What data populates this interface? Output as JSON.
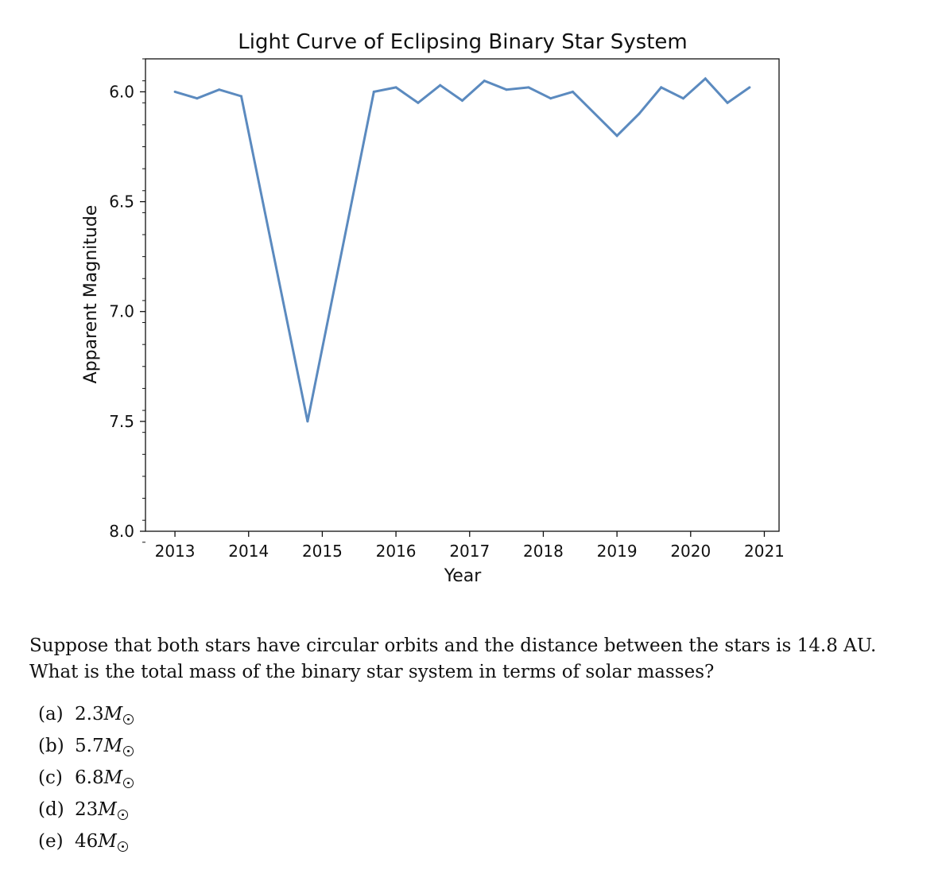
{
  "chart_data": {
    "type": "line",
    "title": "Light Curve of Eclipsing Binary Star System",
    "xlabel": "Year",
    "ylabel": "Apparent Magnitude",
    "xlim": [
      2012.6,
      2021.2
    ],
    "ylim": [
      8.0,
      5.85
    ],
    "y_inverted": true,
    "xticks": [
      2013,
      2014,
      2015,
      2016,
      2017,
      2018,
      2019,
      2020,
      2021
    ],
    "xtick_labels": [
      "2013",
      "2014",
      "2015",
      "2016",
      "2017",
      "2018",
      "2019",
      "2020",
      "2021"
    ],
    "yticks": [
      6.0,
      6.5,
      7.0,
      7.5,
      8.0
    ],
    "ytick_labels": [
      "6.0",
      "6.5",
      "7.0",
      "7.5",
      "8.0"
    ],
    "grid": false,
    "line_color": "#5b8abf",
    "series": [
      {
        "x": [
          2013.0,
          2013.3,
          2013.6,
          2013.9,
          2014.8,
          2015.7,
          2016.0,
          2016.3,
          2016.6,
          2016.9,
          2017.2,
          2017.5,
          2017.8,
          2018.1,
          2018.4,
          2019.0,
          2019.3,
          2019.6,
          2019.9,
          2020.2,
          2020.5,
          2020.8
        ],
        "y": [
          6.0,
          6.03,
          5.99,
          6.02,
          7.5,
          6.0,
          5.98,
          6.05,
          5.97,
          6.04,
          5.95,
          5.99,
          5.98,
          6.03,
          6.0,
          6.2,
          6.1,
          5.98,
          6.03,
          5.94,
          6.05,
          5.98
        ]
      }
    ]
  },
  "question": {
    "text": "Suppose that both stars have circular orbits and the distance between the stars is 14.8 AU. What is the total mass of the binary star system in terms of solar masses?",
    "options": [
      {
        "letter": "(a)",
        "value": "2.3",
        "unit": "M"
      },
      {
        "letter": "(b)",
        "value": "5.7",
        "unit": "M"
      },
      {
        "letter": "(c)",
        "value": "6.8",
        "unit": "M"
      },
      {
        "letter": "(d)",
        "value": "23",
        "unit": "M"
      },
      {
        "letter": "(e)",
        "value": "46",
        "unit": "M"
      }
    ]
  }
}
